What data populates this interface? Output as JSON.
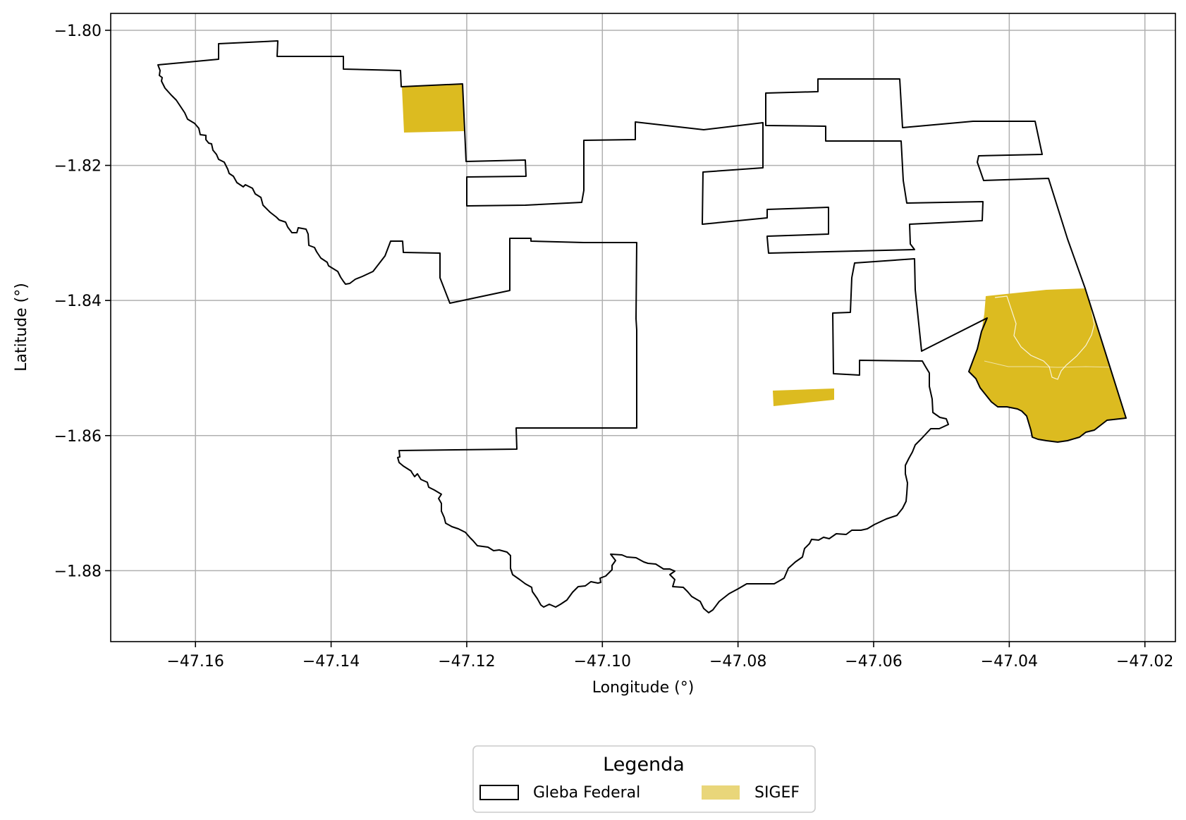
{
  "map": {
    "xlabel": "Longitude (°)",
    "ylabel": "Latitude (°)",
    "x_ticks": [
      {
        "value": -47.16,
        "label": "−47.16"
      },
      {
        "value": -47.14,
        "label": "−47.14"
      },
      {
        "value": -47.12,
        "label": "−47.12"
      },
      {
        "value": -47.1,
        "label": "−47.10"
      },
      {
        "value": -47.08,
        "label": "−47.08"
      },
      {
        "value": -47.06,
        "label": "−47.06"
      },
      {
        "value": -47.04,
        "label": "−47.04"
      },
      {
        "value": -47.02,
        "label": "−47.02"
      }
    ],
    "y_ticks": [
      {
        "value": -1.8,
        "label": "−1.80"
      },
      {
        "value": -1.82,
        "label": "−1.82"
      },
      {
        "value": -1.84,
        "label": "−1.84"
      },
      {
        "value": -1.86,
        "label": "−1.86"
      },
      {
        "value": -1.88,
        "label": "−1.88"
      }
    ],
    "xlim": [
      -47.1725,
      -47.0155
    ],
    "ylim": [
      -1.8905,
      -1.7975
    ],
    "grid": true,
    "legend": {
      "title": "Legenda",
      "placement": "bottom-center",
      "items": [
        {
          "label": "Gleba Federal",
          "style": "outline",
          "edge_color": "#000000",
          "fill_color": "#ffffff"
        },
        {
          "label": "SIGEF",
          "style": "fill",
          "fill_color": "#e9d67a"
        }
      ]
    },
    "colors": {
      "sigef_fill": "#dcbb20",
      "gleba_edge": "#000000",
      "grid": "#b0b0b0"
    }
  }
}
